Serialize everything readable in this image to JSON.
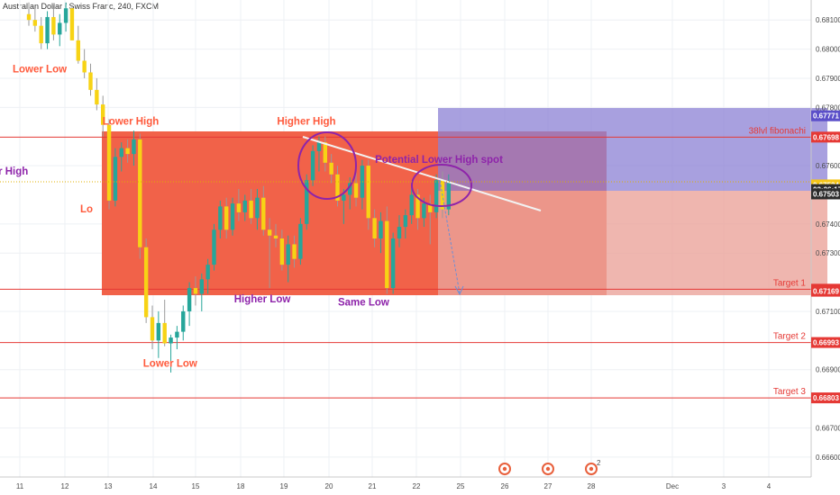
{
  "header": {
    "symbol_title": "Australian Dollar / Swiss Franc, 240, FXCM"
  },
  "chart_data": {
    "type": "candlestick",
    "title": "Australian Dollar / Swiss Franc, 240, FXCM",
    "ylim": [
      0.6655,
      0.6815
    ],
    "y_ticks": [
      "0.68100",
      "0.68000",
      "0.67900",
      "0.67800",
      "0.67600",
      "0.67400",
      "0.67300",
      "0.67100",
      "0.66900",
      "0.66700",
      "0.66600"
    ],
    "x_ticks": [
      "11",
      "12",
      "13",
      "14",
      "15",
      "18",
      "19",
      "20",
      "21",
      "22",
      "25",
      "26",
      "27",
      "28",
      "Dec",
      "3",
      "4"
    ],
    "price_tags": [
      {
        "label": "0.67771",
        "value": 0.67771,
        "color": "#5b4fc9"
      },
      {
        "label": "0.67698",
        "value": 0.67698,
        "color": "#e53935"
      },
      {
        "label": "0.67534",
        "value": 0.67534,
        "color": "#f5c518"
      },
      {
        "label": "02:26:17",
        "value": 0.67518,
        "color": "#2c2c2c"
      },
      {
        "label": "0.67503",
        "value": 0.67503,
        "color": "#2c2c2c"
      },
      {
        "label": "0.67176",
        "value": 0.67176,
        "color": "#e53935"
      },
      {
        "label": "0.67169",
        "value": 0.67169,
        "color": "#e53935"
      },
      {
        "label": "0.66993",
        "value": 0.66993,
        "color": "#e53935"
      },
      {
        "label": "0.66803",
        "value": 0.66803,
        "color": "#e53935"
      }
    ],
    "levels": [
      {
        "name": "38lvl fibonachi",
        "value": 0.67698
      },
      {
        "name": "Target 1",
        "value": 0.67176
      },
      {
        "name": "Target 2",
        "value": 0.66993
      },
      {
        "name": "Target 3",
        "value": 0.66803
      }
    ],
    "annotations": [
      {
        "text": "Lower Low",
        "x": "11",
        "y": 0.6792
      },
      {
        "text": "Lower High",
        "x": "13.5",
        "y": 0.6774
      },
      {
        "text": "Lo",
        "x": "12.5",
        "y": 0.6744
      },
      {
        "text": "Lower High",
        "x": "17",
        "y": 0.6757
      },
      {
        "text": "Higher High",
        "x": "19.5",
        "y": 0.6774
      },
      {
        "text": "Potential Lower High spot",
        "x": "22.5",
        "y": 0.6761
      },
      {
        "text": "Higher Low",
        "x": "18.5",
        "y": 0.6713
      },
      {
        "text": "Same Low",
        "x": "20.8",
        "y": 0.6712
      },
      {
        "text": "Lower Low",
        "x": "14.4",
        "y": 0.6691
      }
    ],
    "candles": [
      {
        "o": 0.6812,
        "h": 0.6816,
        "l": 0.6808,
        "c": 0.681
      },
      {
        "o": 0.681,
        "h": 0.6814,
        "l": 0.6806,
        "c": 0.6808
      },
      {
        "o": 0.6808,
        "h": 0.6811,
        "l": 0.68,
        "c": 0.6802
      },
      {
        "o": 0.6802,
        "h": 0.6813,
        "l": 0.68,
        "c": 0.6811
      },
      {
        "o": 0.6811,
        "h": 0.6815,
        "l": 0.6803,
        "c": 0.6805
      },
      {
        "o": 0.6805,
        "h": 0.6812,
        "l": 0.6801,
        "c": 0.6809
      },
      {
        "o": 0.6809,
        "h": 0.6816,
        "l": 0.6806,
        "c": 0.6814
      },
      {
        "o": 0.6814,
        "h": 0.6815,
        "l": 0.6803,
        "c": 0.6803
      },
      {
        "o": 0.6803,
        "h": 0.6808,
        "l": 0.6795,
        "c": 0.6796
      },
      {
        "o": 0.6796,
        "h": 0.68,
        "l": 0.679,
        "c": 0.6792
      },
      {
        "o": 0.6792,
        "h": 0.6795,
        "l": 0.6784,
        "c": 0.6786
      },
      {
        "o": 0.6786,
        "h": 0.679,
        "l": 0.6779,
        "c": 0.6781
      },
      {
        "o": 0.6781,
        "h": 0.6784,
        "l": 0.677,
        "c": 0.6774
      },
      {
        "o": 0.6774,
        "h": 0.6776,
        "l": 0.6745,
        "c": 0.6748
      },
      {
        "o": 0.6748,
        "h": 0.6766,
        "l": 0.6746,
        "c": 0.6763
      },
      {
        "o": 0.6763,
        "h": 0.6768,
        "l": 0.6758,
        "c": 0.6766
      },
      {
        "o": 0.6766,
        "h": 0.6769,
        "l": 0.6761,
        "c": 0.6764
      },
      {
        "o": 0.6764,
        "h": 0.6772,
        "l": 0.676,
        "c": 0.6769
      },
      {
        "o": 0.6769,
        "h": 0.6771,
        "l": 0.6728,
        "c": 0.6732
      },
      {
        "o": 0.6732,
        "h": 0.6735,
        "l": 0.6706,
        "c": 0.6708
      },
      {
        "o": 0.6708,
        "h": 0.6712,
        "l": 0.6697,
        "c": 0.67
      },
      {
        "o": 0.67,
        "h": 0.671,
        "l": 0.6694,
        "c": 0.6706
      },
      {
        "o": 0.6706,
        "h": 0.6714,
        "l": 0.6698,
        "c": 0.6699
      },
      {
        "o": 0.6699,
        "h": 0.6702,
        "l": 0.6689,
        "c": 0.6701
      },
      {
        "o": 0.6701,
        "h": 0.6705,
        "l": 0.6697,
        "c": 0.6703
      },
      {
        "o": 0.6703,
        "h": 0.6712,
        "l": 0.67,
        "c": 0.671
      },
      {
        "o": 0.671,
        "h": 0.672,
        "l": 0.6705,
        "c": 0.6718
      },
      {
        "o": 0.6718,
        "h": 0.6722,
        "l": 0.6712,
        "c": 0.6716
      },
      {
        "o": 0.6716,
        "h": 0.6723,
        "l": 0.671,
        "c": 0.6721
      },
      {
        "o": 0.6721,
        "h": 0.6728,
        "l": 0.6716,
        "c": 0.6726
      },
      {
        "o": 0.6726,
        "h": 0.674,
        "l": 0.6724,
        "c": 0.6738
      },
      {
        "o": 0.6738,
        "h": 0.6748,
        "l": 0.6735,
        "c": 0.6746
      },
      {
        "o": 0.6746,
        "h": 0.6749,
        "l": 0.6735,
        "c": 0.6738
      },
      {
        "o": 0.6738,
        "h": 0.6749,
        "l": 0.6736,
        "c": 0.6747
      },
      {
        "o": 0.6747,
        "h": 0.6752,
        "l": 0.6741,
        "c": 0.6744
      },
      {
        "o": 0.6744,
        "h": 0.675,
        "l": 0.6741,
        "c": 0.6748
      },
      {
        "o": 0.6748,
        "h": 0.6752,
        "l": 0.674,
        "c": 0.6742
      },
      {
        "o": 0.6742,
        "h": 0.6752,
        "l": 0.6738,
        "c": 0.6749
      },
      {
        "o": 0.6749,
        "h": 0.6753,
        "l": 0.6736,
        "c": 0.6738
      },
      {
        "o": 0.6738,
        "h": 0.6742,
        "l": 0.6718,
        "c": 0.6736
      },
      {
        "o": 0.6736,
        "h": 0.674,
        "l": 0.6732,
        "c": 0.6735
      },
      {
        "o": 0.6735,
        "h": 0.6738,
        "l": 0.6724,
        "c": 0.6726
      },
      {
        "o": 0.6726,
        "h": 0.6736,
        "l": 0.672,
        "c": 0.6733
      },
      {
        "o": 0.6733,
        "h": 0.6736,
        "l": 0.6725,
        "c": 0.6728
      },
      {
        "o": 0.6728,
        "h": 0.6742,
        "l": 0.6726,
        "c": 0.674
      },
      {
        "o": 0.674,
        "h": 0.6757,
        "l": 0.6738,
        "c": 0.6755
      },
      {
        "o": 0.6755,
        "h": 0.6767,
        "l": 0.6753,
        "c": 0.6765
      },
      {
        "o": 0.6765,
        "h": 0.677,
        "l": 0.6758,
        "c": 0.6768
      },
      {
        "o": 0.6768,
        "h": 0.677,
        "l": 0.6758,
        "c": 0.6761
      },
      {
        "o": 0.6761,
        "h": 0.6764,
        "l": 0.6754,
        "c": 0.6757
      },
      {
        "o": 0.6757,
        "h": 0.676,
        "l": 0.6746,
        "c": 0.6748
      },
      {
        "o": 0.6748,
        "h": 0.6752,
        "l": 0.674,
        "c": 0.675
      },
      {
        "o": 0.675,
        "h": 0.6756,
        "l": 0.6745,
        "c": 0.6754
      },
      {
        "o": 0.6754,
        "h": 0.676,
        "l": 0.6746,
        "c": 0.6749
      },
      {
        "o": 0.6749,
        "h": 0.6762,
        "l": 0.6745,
        "c": 0.676
      },
      {
        "o": 0.676,
        "h": 0.6762,
        "l": 0.6738,
        "c": 0.6742
      },
      {
        "o": 0.6742,
        "h": 0.6745,
        "l": 0.6732,
        "c": 0.6735
      },
      {
        "o": 0.6735,
        "h": 0.6744,
        "l": 0.673,
        "c": 0.6741
      },
      {
        "o": 0.6741,
        "h": 0.6746,
        "l": 0.6716,
        "c": 0.6718
      },
      {
        "o": 0.6718,
        "h": 0.6737,
        "l": 0.6716,
        "c": 0.6735
      },
      {
        "o": 0.6735,
        "h": 0.6743,
        "l": 0.6732,
        "c": 0.6739
      },
      {
        "o": 0.6739,
        "h": 0.6745,
        "l": 0.6735,
        "c": 0.6743
      },
      {
        "o": 0.6743,
        "h": 0.6753,
        "l": 0.674,
        "c": 0.675
      },
      {
        "o": 0.675,
        "h": 0.6752,
        "l": 0.6738,
        "c": 0.6742
      },
      {
        "o": 0.6742,
        "h": 0.6749,
        "l": 0.6739,
        "c": 0.6747
      },
      {
        "o": 0.6747,
        "h": 0.675,
        "l": 0.6733,
        "c": 0.6744
      },
      {
        "o": 0.6744,
        "h": 0.6757,
        "l": 0.6742,
        "c": 0.6755
      },
      {
        "o": 0.6755,
        "h": 0.6758,
        "l": 0.6742,
        "c": 0.6745
      },
      {
        "o": 0.6745,
        "h": 0.6757,
        "l": 0.6743,
        "c": 0.6754
      }
    ]
  },
  "events": [
    {
      "name": "economic-event-1",
      "x": "26"
    },
    {
      "name": "economic-event-2",
      "x": "27"
    },
    {
      "name": "economic-event-3",
      "x": "28",
      "count": "2"
    }
  ]
}
